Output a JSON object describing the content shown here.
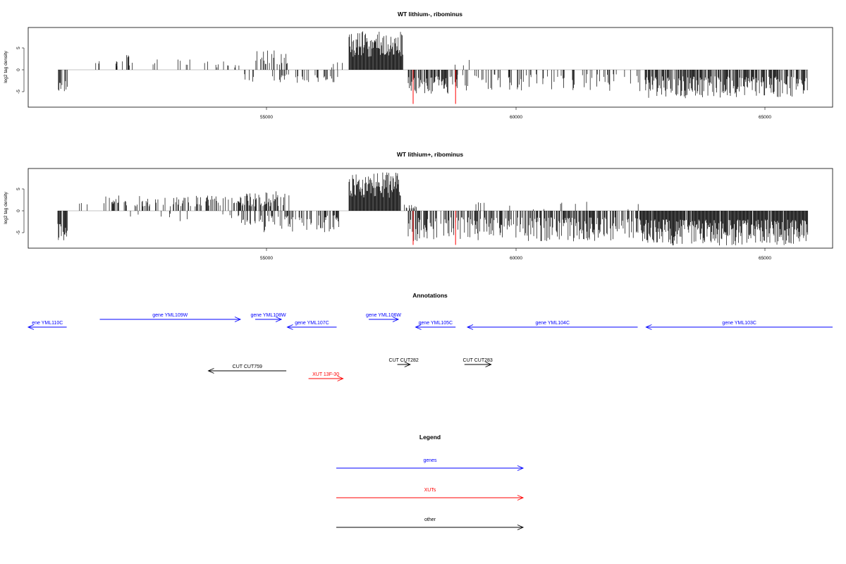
{
  "colors": {
    "gene": "#0000ff",
    "xut": "#ff0000",
    "other": "#000000",
    "bar": "#000000",
    "highlight": "#ff0000"
  },
  "panels": [
    {
      "title": "WT lithium-, ribominus",
      "ylabel": "log2 tag density",
      "y_ticks": [
        "-5",
        "0",
        "5"
      ],
      "x_ticks": [
        "55000",
        "60000",
        "65000"
      ]
    },
    {
      "title": "WT lithium+, ribominus",
      "ylabel": "log2 tag density",
      "y_ticks": [
        "-5",
        "0",
        "5"
      ],
      "x_ticks": [
        "55000",
        "60000",
        "65000"
      ]
    }
  ],
  "annotations": {
    "title": "Annotations",
    "items": [
      {
        "label": "ene YML110C",
        "type": "gene",
        "start": 50000,
        "end": 50780,
        "strand": "-",
        "row": 0
      },
      {
        "label": "gene YML109W",
        "type": "gene",
        "start": 51450,
        "end": 54300,
        "strand": "+",
        "row": 1
      },
      {
        "label": "gene YML108W",
        "type": "gene",
        "start": 54600,
        "end": 55130,
        "strand": "+",
        "row": 1
      },
      {
        "label": "gene YML107C",
        "type": "gene",
        "start": 55250,
        "end": 56250,
        "strand": "-",
        "row": 0
      },
      {
        "label": "gene YML106W",
        "type": "gene",
        "start": 56900,
        "end": 57500,
        "strand": "+",
        "row": 1
      },
      {
        "label": "gene YML105C",
        "type": "gene",
        "start": 57850,
        "end": 58660,
        "strand": "-",
        "row": 0
      },
      {
        "label": "gene YML104C",
        "type": "gene",
        "start": 58900,
        "end": 62350,
        "strand": "-",
        "row": 0
      },
      {
        "label": "gene YML103C",
        "type": "gene",
        "start": 62520,
        "end": 66300,
        "strand": "-",
        "row": 0
      },
      {
        "label": "CUT CUT759",
        "type": "other",
        "start": 53650,
        "end": 55230,
        "strand": "-",
        "row": 2
      },
      {
        "label": "XUT 13F-30",
        "type": "xut",
        "start": 55680,
        "end": 56380,
        "strand": "+",
        "row": 3
      },
      {
        "label": "CUT CUT282",
        "type": "other",
        "start": 57480,
        "end": 57740,
        "strand": "+",
        "row": 4
      },
      {
        "label": "CUT CUT283",
        "type": "other",
        "start": 58840,
        "end": 59380,
        "strand": "+",
        "row": 4
      }
    ]
  },
  "legend": {
    "title": "Legend",
    "items": [
      {
        "label": "genes",
        "type": "gene"
      },
      {
        "label": "XUTs",
        "type": "xut"
      },
      {
        "label": "other",
        "type": "other"
      }
    ]
  },
  "chart_data": [
    {
      "type": "bar",
      "title": "WT lithium-, ribominus",
      "xlabel": "",
      "ylabel": "log2 tag density",
      "xlim": [
        50000,
        66300
      ],
      "ylim": [
        -8.5,
        9
      ],
      "x_ticks": [
        55000,
        60000,
        65000
      ],
      "y_ticks": [
        -5,
        0,
        5
      ],
      "highlight_positions": [
        57800,
        58660
      ],
      "highlight_value": -7.8,
      "segments": [
        {
          "start": 50600,
          "end": 50800,
          "sign": -1,
          "density": 0.55,
          "min": 2.5,
          "max": 5.5
        },
        {
          "start": 51000,
          "end": 51200,
          "sign": -1,
          "density": 0.08,
          "min": 0.5,
          "max": 2.5
        },
        {
          "start": 51200,
          "end": 51800,
          "sign": 1,
          "density": 0.06,
          "min": 0.5,
          "max": 2.5
        },
        {
          "start": 51800,
          "end": 52050,
          "sign": 1,
          "density": 0.3,
          "min": 1,
          "max": 3.5
        },
        {
          "start": 52050,
          "end": 54300,
          "sign": 1,
          "density": 0.09,
          "min": 0.5,
          "max": 2.5
        },
        {
          "start": 54300,
          "end": 54600,
          "sign": -1,
          "density": 0.1,
          "min": 1,
          "max": 3
        },
        {
          "start": 54600,
          "end": 55250,
          "sign": 1,
          "density": 0.45,
          "min": 1,
          "max": 4.5
        },
        {
          "start": 54950,
          "end": 56300,
          "sign": -1,
          "density": 0.25,
          "min": 1,
          "max": 3
        },
        {
          "start": 56100,
          "end": 56500,
          "sign": 1,
          "density": 0.1,
          "min": 0.5,
          "max": 2
        },
        {
          "start": 56500,
          "end": 57600,
          "sign": 1,
          "density": 1,
          "min": 3,
          "max": 8.8
        },
        {
          "start": 57700,
          "end": 58700,
          "sign": -1,
          "density": 0.55,
          "min": 1.5,
          "max": 5.5
        },
        {
          "start": 58650,
          "end": 59000,
          "sign": 1,
          "density": 0.05,
          "min": 1,
          "max": 2.8
        },
        {
          "start": 58700,
          "end": 62450,
          "sign": -1,
          "density": 0.22,
          "min": 1,
          "max": 5
        },
        {
          "start": 62500,
          "end": 65800,
          "sign": -1,
          "density": 0.72,
          "min": 1.5,
          "max": 6.5
        }
      ]
    },
    {
      "type": "bar",
      "title": "WT lithium+, ribominus",
      "xlabel": "",
      "ylabel": "log2 tag density",
      "xlim": [
        50000,
        66300
      ],
      "ylim": [
        -8.5,
        9
      ],
      "x_ticks": [
        55000,
        60000,
        65000
      ],
      "y_ticks": [
        -5,
        0,
        5
      ],
      "highlight_positions": [
        57800,
        58660
      ],
      "highlight_value": -7.8,
      "segments": [
        {
          "start": 50600,
          "end": 50800,
          "sign": -1,
          "density": 0.85,
          "min": 3,
          "max": 7
        },
        {
          "start": 50800,
          "end": 51300,
          "sign": 1,
          "density": 0.08,
          "min": 0.5,
          "max": 2
        },
        {
          "start": 50800,
          "end": 51300,
          "sign": -1,
          "density": 0.05,
          "min": 0.5,
          "max": 2.5
        },
        {
          "start": 51500,
          "end": 54300,
          "sign": 1,
          "density": 0.4,
          "min": 1,
          "max": 3.5
        },
        {
          "start": 52000,
          "end": 54300,
          "sign": -1,
          "density": 0.05,
          "min": 0.5,
          "max": 2.5
        },
        {
          "start": 54300,
          "end": 55300,
          "sign": 1,
          "density": 0.55,
          "min": 1,
          "max": 4.5
        },
        {
          "start": 54300,
          "end": 56300,
          "sign": -1,
          "density": 0.45,
          "min": 1,
          "max": 5
        },
        {
          "start": 56500,
          "end": 57550,
          "sign": 1,
          "density": 1,
          "min": 3,
          "max": 8.8
        },
        {
          "start": 57600,
          "end": 57900,
          "sign": 1,
          "density": 0.2,
          "min": 0.5,
          "max": 1.5
        },
        {
          "start": 57700,
          "end": 62400,
          "sign": -1,
          "density": 0.6,
          "min": 1.5,
          "max": 7
        },
        {
          "start": 59000,
          "end": 62400,
          "sign": 1,
          "density": 0.04,
          "min": 0.3,
          "max": 2.5
        },
        {
          "start": 62400,
          "end": 65800,
          "sign": -1,
          "density": 0.95,
          "min": 2,
          "max": 8
        }
      ]
    }
  ]
}
